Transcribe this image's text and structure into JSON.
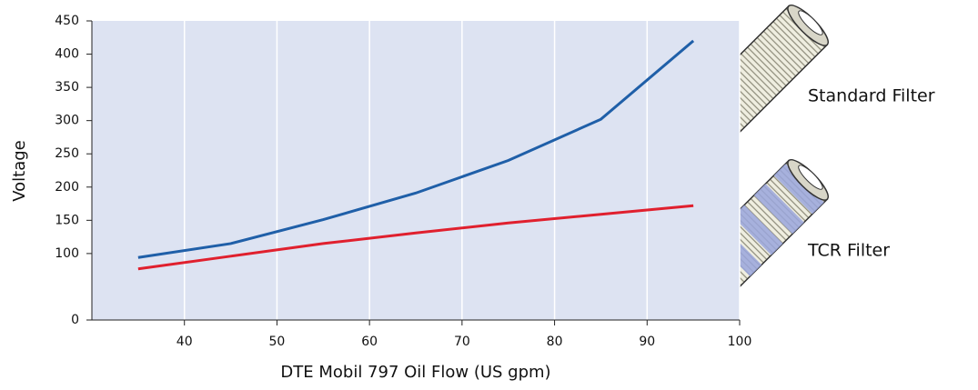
{
  "chart_data": {
    "type": "line",
    "x_label": "DTE Mobil 797 Oil Flow (US gpm)",
    "y_label": "Voltage",
    "x": [
      35,
      45,
      55,
      65,
      75,
      85,
      95
    ],
    "series": [
      {
        "name": "Standard Filter",
        "color": "#1f5fa8",
        "values": [
          94,
          115,
          151,
          191,
          240,
          302,
          420
        ]
      },
      {
        "name": "TCR Filter",
        "color": "#e0202e",
        "values": [
          77,
          96,
          115,
          131,
          146,
          159,
          172
        ]
      }
    ],
    "xlim": [
      30,
      100
    ],
    "xticks": [
      40,
      50,
      60,
      70,
      80,
      90,
      100
    ],
    "ylim": [
      0,
      450
    ],
    "yticks": [
      0,
      100,
      150,
      200,
      250,
      300,
      350,
      400,
      450
    ],
    "grid": true,
    "background": "#dde3f2"
  }
}
